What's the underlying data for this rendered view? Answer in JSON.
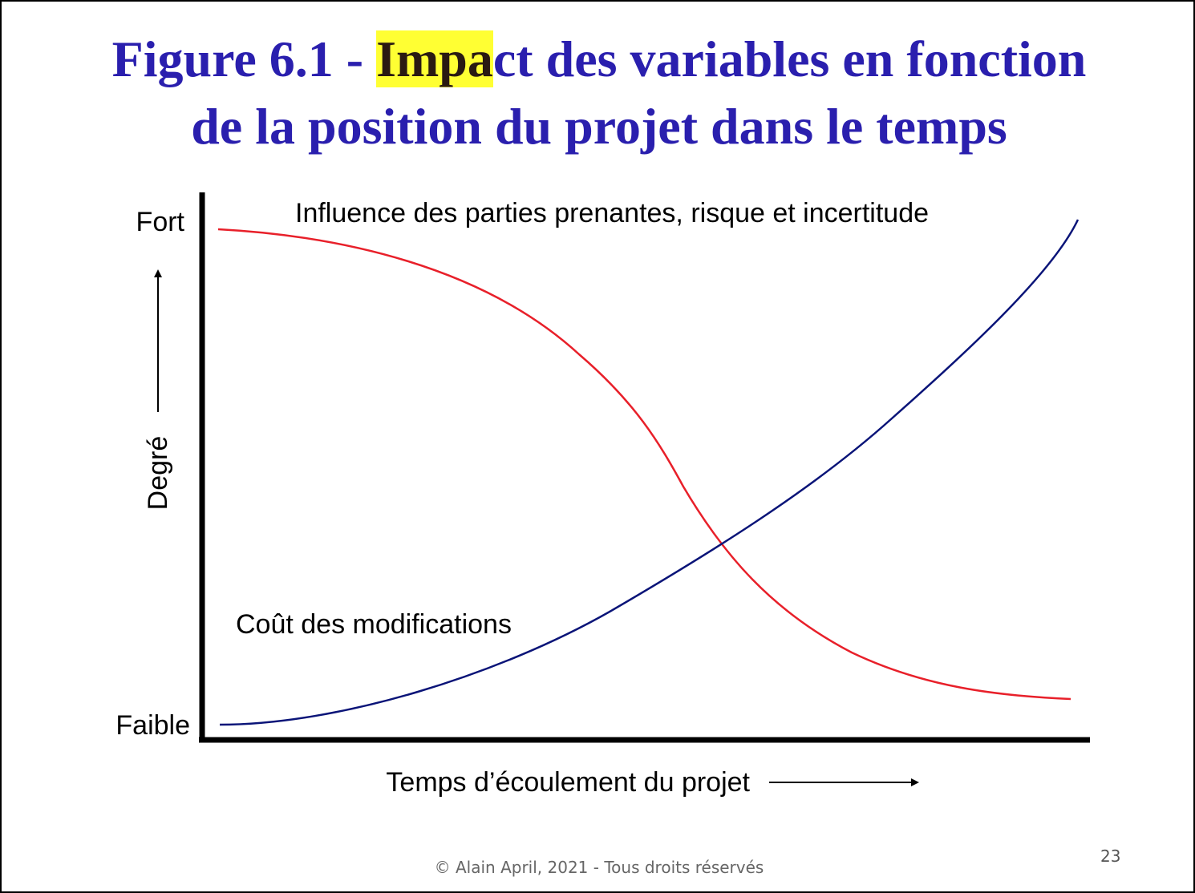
{
  "title": {
    "line1_highlight": "Impa",
    "line1_before": "Figure 6.1 - ",
    "line1_after": "ct des variables en fonction",
    "line2": "de la position du projet dans le temps",
    "highlight_color": "#ffff33",
    "color": "#2a1fae"
  },
  "axes": {
    "y_high": "Fort",
    "y_low": "Faible",
    "y_label": "Degré",
    "x_label": "Temps d’écoulement du projet"
  },
  "curves": {
    "influence": {
      "label": "Influence des parties prenantes, risque et incertitude",
      "color": "#e8202a"
    },
    "cost": {
      "label": "Coût des modifications",
      "color": "#0a1478"
    }
  },
  "footer": {
    "copyright": "© Alain April, 2021 - Tous droits réservés",
    "page_number": "23"
  }
}
